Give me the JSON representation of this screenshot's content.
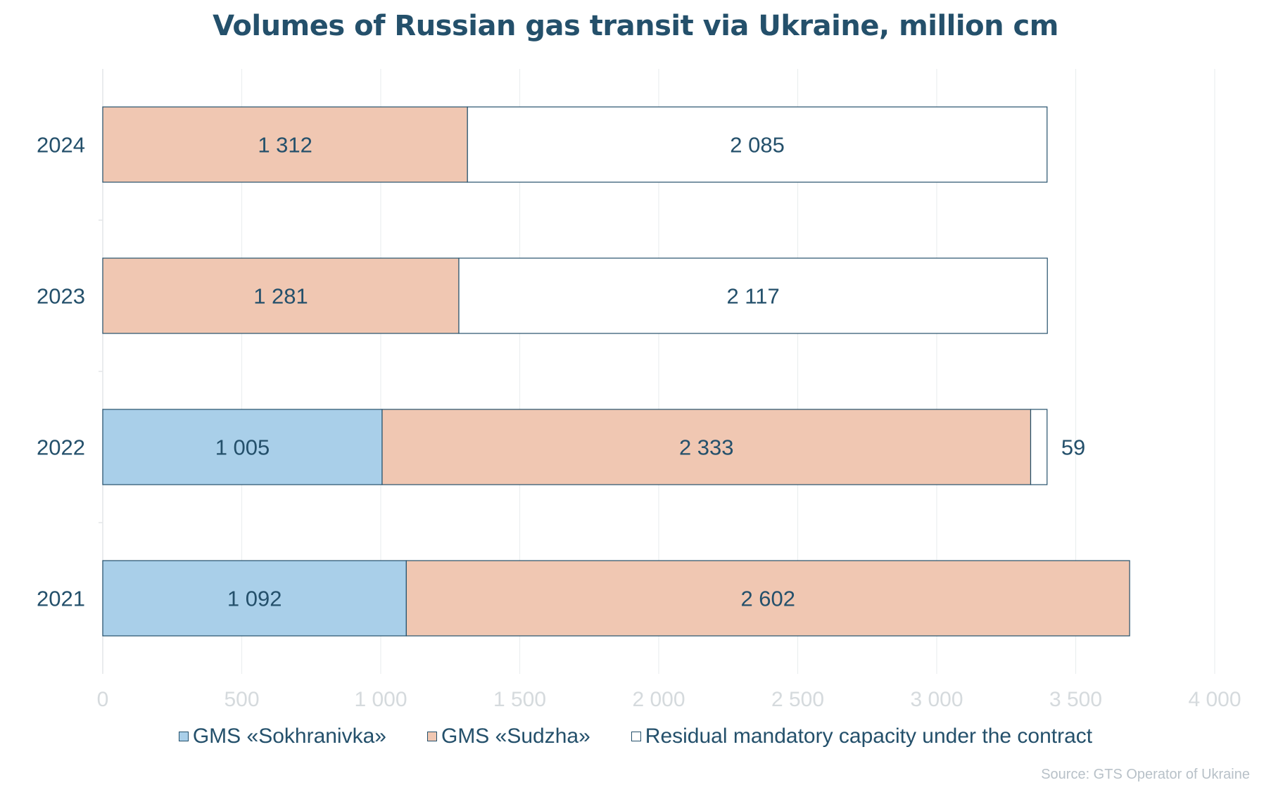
{
  "chart_data": {
    "type": "bar",
    "orientation": "horizontal",
    "stacked": true,
    "title": "Volumes of Russian gas transit via Ukraine, million cm",
    "categories": [
      "2024",
      "2023",
      "2022",
      "2021"
    ],
    "series": [
      {
        "name": "GMS «Sokhranivka»",
        "color": "#a9cfe9",
        "values": [
          null,
          null,
          1005,
          1092
        ],
        "labels": [
          "",
          "",
          "1 005",
          "1 092"
        ]
      },
      {
        "name": "GMS «Sudzha»",
        "color": "#f0c7b2",
        "values": [
          1312,
          1281,
          2333,
          2602
        ],
        "labels": [
          "1 312",
          "1 281",
          "2 333",
          "2 602"
        ]
      },
      {
        "name": "Residual mandatory capacity under the contract",
        "color": "#ffffff",
        "values": [
          2085,
          2117,
          59,
          null
        ],
        "labels": [
          "2 085",
          "2 117",
          "59",
          ""
        ]
      }
    ],
    "xlim": [
      0,
      4000
    ],
    "xticks": [
      0,
      500,
      1000,
      1500,
      2000,
      2500,
      3000,
      3500,
      4000
    ],
    "xtick_labels": [
      "0",
      "500",
      "1 000",
      "1 500",
      "2 000",
      "2 500",
      "3 000",
      "3 500",
      "4 000"
    ],
    "grid": "vertical",
    "legend_position": "bottom",
    "source": "Source: GTS Operator of Ukraine"
  }
}
